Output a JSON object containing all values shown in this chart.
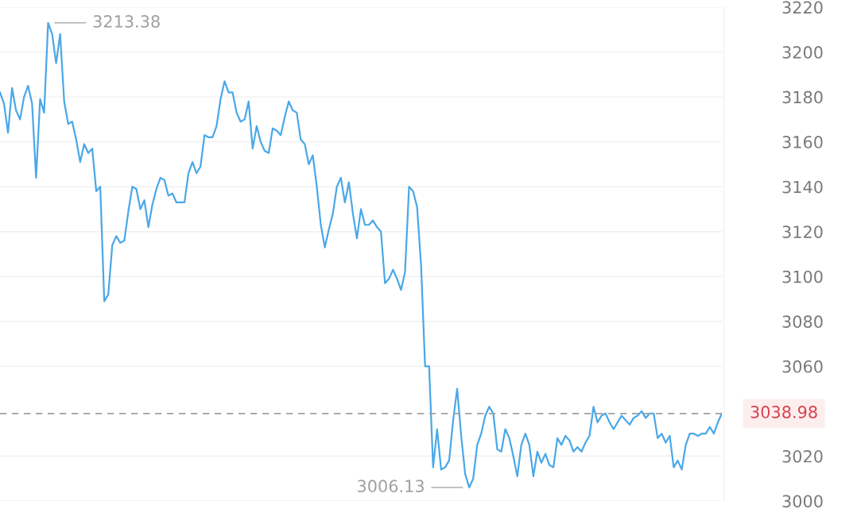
{
  "chart_data": {
    "type": "line",
    "categories": [
      null,
      null,
      null,
      null,
      null,
      null,
      null,
      null,
      null,
      null,
      null,
      null,
      null,
      null,
      null,
      null,
      null,
      null,
      null,
      null,
      null,
      null,
      null,
      null,
      null,
      null,
      null,
      null,
      null,
      null,
      null,
      null,
      null,
      null,
      null,
      null,
      null,
      null,
      null,
      null,
      null,
      null,
      null,
      null,
      null,
      null,
      null,
      null,
      null,
      null,
      null,
      null,
      null,
      null,
      null,
      null,
      null,
      null,
      null,
      null,
      null,
      null,
      null,
      null,
      null,
      null,
      null,
      null,
      null,
      null,
      null,
      null,
      null,
      null,
      null,
      null,
      null,
      null,
      null,
      null,
      null,
      null,
      null,
      null,
      null,
      null,
      null,
      null,
      null,
      null,
      null,
      null,
      null,
      null,
      null,
      null,
      null,
      null,
      null,
      null,
      null,
      null,
      null,
      null,
      null,
      null,
      null,
      null,
      null,
      null,
      null,
      null,
      null,
      null,
      null,
      null,
      null,
      null,
      null,
      null,
      null,
      null,
      null,
      null,
      null,
      null,
      null,
      null,
      null,
      null,
      null,
      null,
      null,
      null,
      null,
      null,
      null,
      null,
      null,
      null,
      null,
      null,
      null,
      null,
      null,
      null,
      null,
      null,
      null,
      null,
      null,
      null,
      null,
      null,
      null,
      null,
      null,
      null,
      null,
      null,
      null,
      null,
      null,
      null,
      null,
      null,
      null,
      null,
      null,
      null,
      null,
      null,
      null,
      null,
      null,
      null,
      null,
      null,
      null,
      null,
      null
    ],
    "series": [
      {
        "color": "#4aa8e8",
        "values": [
          3182,
          3177,
          3164,
          3184,
          3174,
          3170,
          3180,
          3185,
          3177,
          3144,
          3179,
          3173,
          3213,
          3208,
          3195,
          3208,
          3178,
          3168,
          3169,
          3161,
          3151,
          3159,
          3155,
          3157,
          3138,
          3140,
          3089,
          3092,
          3114,
          3118,
          3115,
          3116,
          3129,
          3140,
          3139,
          3130,
          3134,
          3122,
          3132,
          3139,
          3144,
          3143,
          3136,
          3137,
          3133,
          3133,
          3133,
          3146,
          3151,
          3146,
          3149,
          3163,
          3162,
          3162,
          3167,
          3179,
          3187,
          3182,
          3182,
          3173,
          3169,
          3170,
          3178,
          3157,
          3167,
          3160,
          3156,
          3155,
          3166,
          3165,
          3163,
          3171,
          3178,
          3174,
          3173,
          3161,
          3159,
          3150,
          3154,
          3140,
          3123,
          3113,
          3121,
          3128,
          3140,
          3144,
          3133,
          3142,
          3128,
          3117,
          3130,
          3123,
          3123,
          3125,
          3122,
          3120,
          3097,
          3099,
          3103,
          3099,
          3094,
          3102,
          3140,
          3138,
          3131,
          3105,
          3060,
          3060,
          3015,
          3032,
          3014,
          3015,
          3018,
          3036,
          3050,
          3029,
          3012,
          3006,
          3010,
          3025,
          3030,
          3038,
          3042,
          3039,
          3023,
          3022,
          3032,
          3028,
          3020,
          3011,
          3025,
          3030,
          3025,
          3011,
          3022,
          3017,
          3021,
          3016,
          3015,
          3028,
          3025,
          3029,
          3027,
          3022,
          3024,
          3022,
          3026,
          3029,
          3042,
          3035,
          3038,
          3039,
          3035,
          3032,
          3035,
          3038,
          3036,
          3034,
          3037,
          3038,
          3040,
          3037,
          3039,
          3039,
          3028,
          3030,
          3026,
          3029,
          3015,
          3018,
          3014,
          3025,
          3030,
          3030,
          3029,
          3030,
          3030,
          3033,
          3030,
          3035,
          3039
        ]
      }
    ],
    "ylim": [
      3000,
      3220
    ],
    "yticks": [
      3000,
      3020,
      3060,
      3080,
      3100,
      3120,
      3140,
      3160,
      3180,
      3200,
      3220
    ],
    "grid": "y",
    "tick_labels": "y",
    "ref_lines": [
      {
        "axis": "y",
        "value": 3038.98,
        "label": "3038.98",
        "color": "#a0a0a0",
        "line_style": "dashed"
      }
    ],
    "annotations": [
      "3213.38",
      "3006.13"
    ]
  }
}
